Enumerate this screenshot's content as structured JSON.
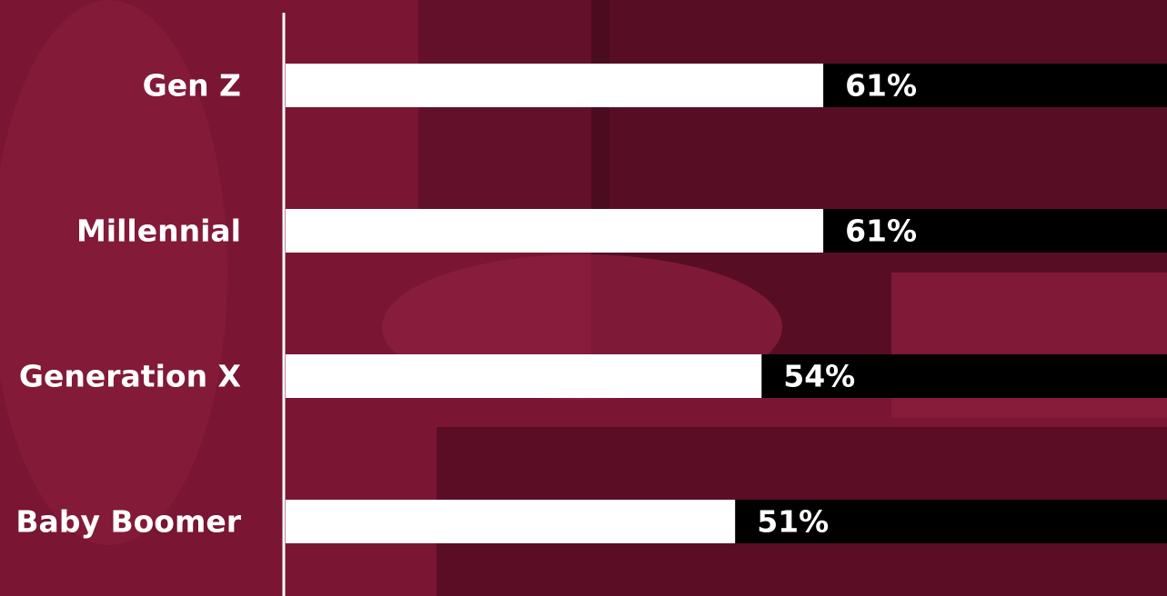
{
  "chart_data": {
    "type": "bar",
    "orientation": "horizontal",
    "categories": [
      "Gen Z",
      "Millennial",
      "Generation X",
      "Baby Boomer"
    ],
    "values": [
      61,
      61,
      54,
      51
    ],
    "value_labels": [
      "61%",
      "61%",
      "54%",
      "51%"
    ],
    "color": "#ffffff",
    "xlim": [
      0,
      100
    ]
  }
}
